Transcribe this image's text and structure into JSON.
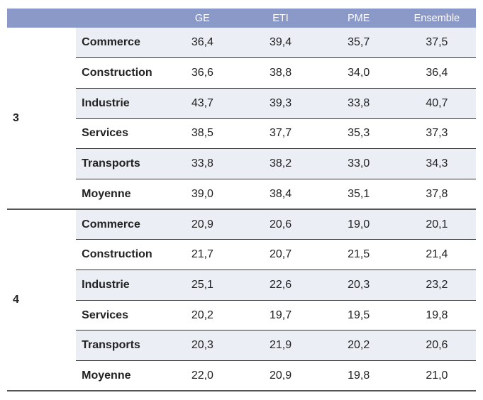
{
  "header": {
    "group": "",
    "sector": "",
    "columns": [
      "GE",
      "ETI",
      "PME",
      "Ensemble"
    ]
  },
  "groups": [
    {
      "label": "3",
      "rows": [
        {
          "sector": "Commerce",
          "values": [
            "36,4",
            "39,4",
            "35,7",
            "37,5"
          ]
        },
        {
          "sector": "Construction",
          "values": [
            "36,6",
            "38,8",
            "34,0",
            "36,4"
          ]
        },
        {
          "sector": "Industrie",
          "values": [
            "43,7",
            "39,3",
            "33,8",
            "40,7"
          ]
        },
        {
          "sector": "Services",
          "values": [
            "38,5",
            "37,7",
            "35,3",
            "37,3"
          ]
        },
        {
          "sector": "Transports",
          "values": [
            "33,8",
            "38,2",
            "33,0",
            "34,3"
          ]
        },
        {
          "sector": "Moyenne",
          "values": [
            "39,0",
            "38,4",
            "35,1",
            "37,8"
          ]
        }
      ]
    },
    {
      "label": "4",
      "rows": [
        {
          "sector": "Commerce",
          "values": [
            "20,9",
            "20,6",
            "19,0",
            "20,1"
          ]
        },
        {
          "sector": "Construction",
          "values": [
            "21,7",
            "20,7",
            "21,5",
            "21,4"
          ]
        },
        {
          "sector": "Industrie",
          "values": [
            "25,1",
            "22,6",
            "20,3",
            "23,2"
          ]
        },
        {
          "sector": "Services",
          "values": [
            "20,2",
            "19,7",
            "19,5",
            "19,8"
          ]
        },
        {
          "sector": "Transports",
          "values": [
            "20,3",
            "21,9",
            "20,2",
            "20,6"
          ]
        },
        {
          "sector": "Moyenne",
          "values": [
            "22,0",
            "20,9",
            "19,8",
            "21,0"
          ]
        }
      ]
    }
  ]
}
